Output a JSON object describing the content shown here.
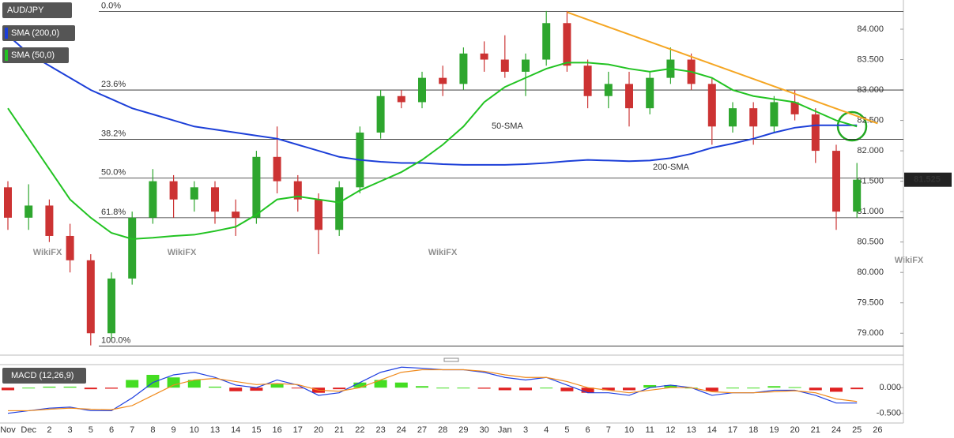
{
  "chart_data": {
    "type": "candlestick",
    "title": "AUD/JPY",
    "watermark": "WikiFX",
    "categories": [
      "Nov",
      "Dec",
      "2",
      "3",
      "5",
      "6",
      "7",
      "8",
      "9",
      "10",
      "13",
      "14",
      "15",
      "16",
      "17",
      "20",
      "21",
      "22",
      "23",
      "24",
      "27",
      "28",
      "29",
      "30",
      "Jan",
      "3",
      "4",
      "5",
      "6",
      "7",
      "10",
      "11",
      "12",
      "13",
      "14",
      "17",
      "18",
      "19",
      "20",
      "21",
      "24",
      "25",
      "26"
    ],
    "open": [
      81.4,
      80.9,
      81.1,
      80.6,
      80.2,
      79.0,
      79.9,
      80.9,
      81.5,
      81.2,
      81.4,
      81.0,
      80.9,
      81.9,
      81.5,
      81.2,
      80.7,
      81.4,
      82.3,
      82.9,
      82.8,
      83.2,
      83.1,
      83.6,
      83.5,
      83.3,
      83.5,
      84.1,
      83.4,
      82.9,
      83.1,
      82.7,
      83.2,
      83.5,
      83.1,
      82.4,
      82.7,
      82.4,
      82.8,
      82.6,
      82.0,
      81.0,
      null
    ],
    "high": [
      81.5,
      81.45,
      81.2,
      80.8,
      80.3,
      80.0,
      81.0,
      81.7,
      81.6,
      81.5,
      81.5,
      81.2,
      82.0,
      82.4,
      81.6,
      81.3,
      81.5,
      82.4,
      83.0,
      83.0,
      83.3,
      83.4,
      83.7,
      83.8,
      83.9,
      83.6,
      84.3,
      84.3,
      83.5,
      83.3,
      83.3,
      83.3,
      83.7,
      83.6,
      83.2,
      82.8,
      82.8,
      82.9,
      83.0,
      82.7,
      82.1,
      81.8,
      null
    ],
    "low": [
      80.7,
      80.7,
      80.5,
      80.0,
      78.8,
      78.9,
      79.8,
      80.8,
      80.9,
      81.0,
      80.8,
      80.6,
      80.8,
      81.3,
      81.0,
      80.3,
      80.6,
      81.3,
      82.2,
      82.7,
      82.7,
      82.9,
      83.0,
      83.3,
      83.2,
      82.9,
      83.4,
      83.3,
      82.7,
      82.7,
      82.4,
      82.6,
      83.1,
      83.0,
      82.1,
      82.3,
      82.1,
      82.3,
      82.5,
      81.8,
      80.7,
      80.9,
      null
    ],
    "close": [
      80.9,
      81.1,
      80.6,
      80.2,
      79.0,
      79.9,
      80.9,
      81.5,
      81.2,
      81.4,
      81.0,
      80.9,
      81.9,
      81.5,
      81.2,
      80.7,
      81.4,
      82.3,
      82.9,
      82.8,
      83.2,
      83.1,
      83.6,
      83.5,
      83.3,
      83.5,
      84.1,
      83.4,
      82.9,
      83.1,
      82.7,
      83.2,
      83.5,
      83.1,
      82.4,
      82.7,
      82.4,
      82.8,
      82.6,
      82.0,
      81.0,
      81.525,
      null
    ],
    "up_color": "#2ea62e",
    "down_color": "#cc3333",
    "ylim": [
      78.64,
      84.48
    ],
    "yticks": [
      {
        "value": 79.0,
        "label": "79.000"
      },
      {
        "value": 79.5,
        "label": "79.500"
      },
      {
        "value": 80.0,
        "label": "80.000"
      },
      {
        "value": 80.5,
        "label": "80.500"
      },
      {
        "value": 81.0,
        "label": "81.000"
      },
      {
        "value": 81.5,
        "label": "81.500"
      },
      {
        "value": 82.0,
        "label": "82.000"
      },
      {
        "value": 82.5,
        "label": "82.500"
      },
      {
        "value": 83.0,
        "label": "83.000"
      },
      {
        "value": 83.5,
        "label": "83.500"
      },
      {
        "value": 84.0,
        "label": "84.000"
      }
    ],
    "series": [
      {
        "name": "SMA (200,0)",
        "color": "#1c3fd8",
        "values": [
          83.9,
          83.6,
          83.4,
          83.2,
          83.0,
          82.85,
          82.7,
          82.6,
          82.5,
          82.4,
          82.35,
          82.3,
          82.25,
          82.2,
          82.1,
          82.0,
          81.9,
          81.85,
          81.82,
          81.8,
          81.8,
          81.78,
          81.77,
          81.77,
          81.77,
          81.78,
          81.8,
          81.83,
          81.85,
          81.84,
          81.83,
          81.84,
          81.88,
          81.95,
          82.05,
          82.12,
          82.2,
          82.3,
          82.38,
          82.42,
          82.42,
          82.42,
          null
        ]
      },
      {
        "name": "SMA (50,0)",
        "color": "#22c322",
        "values": [
          82.7,
          82.2,
          81.7,
          81.2,
          80.9,
          80.65,
          80.55,
          80.57,
          80.6,
          80.62,
          80.68,
          80.75,
          80.95,
          81.2,
          81.25,
          81.2,
          81.15,
          81.35,
          81.5,
          81.65,
          81.85,
          82.1,
          82.4,
          82.8,
          83.05,
          83.2,
          83.35,
          83.45,
          83.45,
          83.42,
          83.35,
          83.3,
          83.35,
          83.3,
          83.2,
          83.0,
          82.9,
          82.85,
          82.8,
          82.65,
          82.5,
          82.4,
          null
        ]
      }
    ],
    "annotations": [
      {
        "text": "50-SMA",
        "color": "#22c322"
      },
      {
        "text": "200-SMA",
        "color": "#5a5ae6"
      }
    ],
    "trendline": {
      "color": "#f5a623",
      "category_index": [
        27,
        42
      ],
      "values": [
        84.28,
        82.45
      ]
    },
    "fib_levels": [
      {
        "label": "0.0%",
        "value": 84.29
      },
      {
        "label": "23.6%",
        "value": 83.0
      },
      {
        "label": "38.2%",
        "value": 82.19
      },
      {
        "label": "50.0%",
        "value": 81.55
      },
      {
        "label": "61.8%",
        "value": 80.9
      },
      {
        "label": "100.0%",
        "value": 78.79
      }
    ],
    "last_price": 81.525,
    "macd": {
      "title": "MACD (12,26,9)",
      "ylim": [
        -0.69,
        0.45
      ],
      "yticks": [
        {
          "value": 0,
          "label": "0.000"
        },
        {
          "value": -0.5,
          "label": "-0.500"
        }
      ],
      "macd_line": {
        "color": "#2040e0",
        "values": [
          -0.5,
          -0.45,
          -0.4,
          -0.38,
          -0.45,
          -0.45,
          -0.2,
          0.1,
          0.25,
          0.3,
          0.2,
          0.05,
          0.0,
          0.15,
          0.05,
          -0.15,
          -0.1,
          0.1,
          0.3,
          0.4,
          0.38,
          0.35,
          0.35,
          0.3,
          0.2,
          0.15,
          0.2,
          0.05,
          -0.1,
          -0.1,
          -0.15,
          0.0,
          0.05,
          0.0,
          -0.15,
          -0.1,
          -0.1,
          -0.05,
          -0.05,
          -0.15,
          -0.3,
          -0.3,
          null
        ]
      },
      "signal_line": {
        "color": "#f08a1c",
        "values": [
          -0.45,
          -0.45,
          -0.42,
          -0.4,
          -0.42,
          -0.43,
          -0.35,
          -0.15,
          0.05,
          0.15,
          0.18,
          0.12,
          0.06,
          0.08,
          0.06,
          -0.05,
          -0.07,
          0.0,
          0.15,
          0.3,
          0.35,
          0.35,
          0.35,
          0.32,
          0.25,
          0.2,
          0.2,
          0.12,
          0.0,
          -0.05,
          -0.1,
          -0.05,
          0.0,
          0.0,
          -0.08,
          -0.1,
          -0.1,
          -0.08,
          -0.06,
          -0.1,
          -0.22,
          -0.27,
          null
        ]
      },
      "histogram": {
        "pos_color": "#44dd22",
        "neg_color": "#e02020",
        "values": [
          -0.05,
          0,
          0.02,
          0.02,
          -0.03,
          -0.02,
          0.15,
          0.25,
          0.2,
          0.15,
          0.02,
          -0.07,
          -0.06,
          0.07,
          -0.01,
          -0.1,
          -0.03,
          0.1,
          0.15,
          0.1,
          0.03,
          0,
          0,
          -0.02,
          -0.05,
          -0.05,
          0,
          -0.07,
          -0.1,
          -0.05,
          -0.05,
          0.05,
          0.05,
          0,
          -0.07,
          0,
          0,
          0.03,
          0.01,
          -0.05,
          -0.08,
          -0.03,
          null
        ]
      }
    }
  }
}
